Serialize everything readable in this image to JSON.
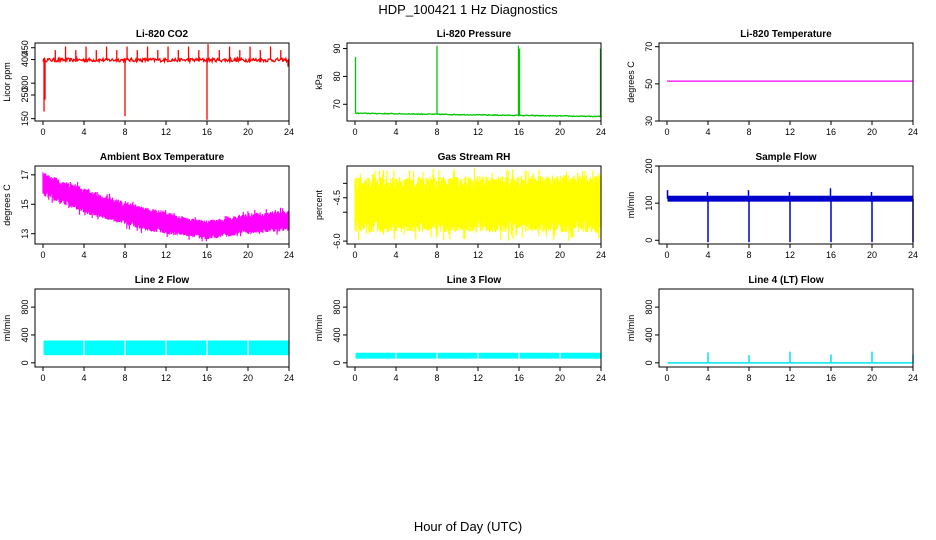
{
  "figure": {
    "title": "HDP_100421  1 Hz Diagnostics",
    "xlabel": "Hour of Day (UTC)"
  },
  "chart_data": [
    {
      "type": "line",
      "title": "Li-820 CO2",
      "ylabel": "Licor ppm",
      "color": "#ff0000",
      "xlim": [
        0,
        24
      ],
      "ylim": [
        140,
        470
      ],
      "xticks": [
        0,
        4,
        8,
        12,
        16,
        20,
        24
      ],
      "yticks": [
        150,
        250,
        300,
        400,
        450
      ],
      "ytick_labels": [
        "150",
        "250",
        "300",
        "400",
        "450"
      ],
      "baseline": {
        "mean": 398,
        "noise": 8
      },
      "spikes": [
        [
          0.1,
          180
        ],
        [
          0.2,
          230
        ],
        [
          1.2,
          440
        ],
        [
          2.2,
          455
        ],
        [
          3.2,
          440
        ],
        [
          4.2,
          455
        ],
        [
          5.2,
          440
        ],
        [
          6.2,
          455
        ],
        [
          7.2,
          440
        ],
        [
          8.0,
          160
        ],
        [
          8.2,
          455
        ],
        [
          9.2,
          440
        ],
        [
          10.2,
          455
        ],
        [
          11.2,
          440
        ],
        [
          12.2,
          455
        ],
        [
          13.2,
          440
        ],
        [
          14.2,
          455
        ],
        [
          15.2,
          440
        ],
        [
          16.0,
          145
        ],
        [
          16.1,
          465
        ],
        [
          17.2,
          440
        ],
        [
          18.2,
          455
        ],
        [
          19.2,
          440
        ],
        [
          20.2,
          455
        ],
        [
          21.2,
          440
        ],
        [
          22.2,
          455
        ],
        [
          23.2,
          440
        ],
        [
          23.9,
          370
        ]
      ]
    },
    {
      "type": "line",
      "title": "Li-820 Pressure",
      "ylabel": "kPa",
      "color": "#00c800",
      "xlim": [
        0,
        24
      ],
      "ylim": [
        64,
        92
      ],
      "xticks": [
        0,
        4,
        8,
        12,
        16,
        20,
        24
      ],
      "yticks": [
        70,
        80,
        90
      ],
      "ytick_labels": [
        "70",
        "80",
        "90"
      ],
      "baseline": {
        "start": 66.8,
        "end": 65.6,
        "noise": 0.15
      },
      "spikes": [
        [
          0.05,
          87
        ],
        [
          8.0,
          91
        ],
        [
          15.95,
          91
        ],
        [
          16.05,
          90
        ],
        [
          23.95,
          90
        ]
      ]
    },
    {
      "type": "line",
      "title": "Li-820 Temperature",
      "ylabel": "degrees C",
      "color": "#ff00ff",
      "xlim": [
        0,
        24
      ],
      "ylim": [
        30,
        72
      ],
      "xticks": [
        0,
        4,
        8,
        12,
        16,
        20,
        24
      ],
      "yticks": [
        30,
        50,
        70
      ],
      "ytick_labels": [
        "30",
        "50",
        "70"
      ],
      "baseline": {
        "mean": 51.5,
        "noise": 0
      },
      "spikes": []
    },
    {
      "type": "area",
      "title": "Ambient Box Temperature",
      "ylabel": "degrees C",
      "color": "#ff00ff",
      "xlim": [
        0,
        24
      ],
      "ylim": [
        12.3,
        17.6
      ],
      "xticks": [
        0,
        4,
        8,
        12,
        16,
        20,
        24
      ],
      "yticks": [
        13,
        15,
        17
      ],
      "ytick_labels": [
        "13",
        "15",
        "17"
      ],
      "upper": [
        [
          0,
          17.2
        ],
        [
          2,
          16.6
        ],
        [
          4,
          16.1
        ],
        [
          6,
          15.6
        ],
        [
          8,
          15.2
        ],
        [
          10,
          14.8
        ],
        [
          12,
          14.5
        ],
        [
          14,
          14.1
        ],
        [
          16,
          13.9
        ],
        [
          18,
          14.1
        ],
        [
          20,
          14.4
        ],
        [
          22,
          14.5
        ],
        [
          24,
          14.6
        ]
      ],
      "lower": [
        [
          0,
          15.6
        ],
        [
          2,
          15.0
        ],
        [
          4,
          14.4
        ],
        [
          6,
          14.0
        ],
        [
          8,
          13.6
        ],
        [
          10,
          13.2
        ],
        [
          12,
          13.0
        ],
        [
          14,
          12.8
        ],
        [
          16,
          12.6
        ],
        [
          18,
          12.8
        ],
        [
          20,
          13.0
        ],
        [
          22,
          13.1
        ],
        [
          24,
          13.2
        ]
      ]
    },
    {
      "type": "area",
      "title": "Gas Stream RH",
      "ylabel": "percent",
      "color": "#ffff00",
      "xlim": [
        0,
        24
      ],
      "ylim": [
        -6.1,
        -3.4
      ],
      "xticks": [
        0,
        4,
        8,
        12,
        16,
        20,
        24
      ],
      "yticks": [
        -6.0,
        -5.0,
        -4.5,
        -4.0
      ],
      "ytick_labels": [
        "-6.0",
        "",
        "-4.5",
        ""
      ],
      "upper": [
        [
          0,
          -3.8
        ],
        [
          24,
          -3.7
        ]
      ],
      "lower": [
        [
          0,
          -5.7
        ],
        [
          24,
          -5.7
        ]
      ]
    },
    {
      "type": "line",
      "title": "Sample Flow",
      "ylabel": "ml/min",
      "color": "#0000cd",
      "xlim": [
        0,
        24
      ],
      "ylim": [
        -10,
        200
      ],
      "xticks": [
        0,
        4,
        8,
        12,
        16,
        20,
        24
      ],
      "yticks": [
        0,
        100,
        200
      ],
      "ytick_labels": [
        "0",
        "100",
        "200"
      ],
      "band": [
        104,
        120
      ],
      "spikes": [
        [
          0.05,
          135
        ],
        [
          3.95,
          130
        ],
        [
          4.0,
          -5
        ],
        [
          7.95,
          135
        ],
        [
          8.0,
          -5
        ],
        [
          11.95,
          130
        ],
        [
          12.0,
          -5
        ],
        [
          15.95,
          140
        ],
        [
          16.0,
          -5
        ],
        [
          19.95,
          130
        ],
        [
          20.0,
          -5
        ],
        [
          23.95,
          120
        ],
        [
          24.0,
          -5
        ]
      ]
    },
    {
      "type": "area",
      "title": "Line 2 Flow",
      "ylabel": "ml/min",
      "color": "#00ffff",
      "xlim": [
        0,
        24
      ],
      "ylim": [
        -60,
        1060
      ],
      "xticks": [
        0,
        4,
        8,
        12,
        16,
        20,
        24
      ],
      "yticks": [
        0,
        400,
        800
      ],
      "ytick_labels": [
        "0",
        "400",
        "800"
      ],
      "band": [
        110,
        320
      ],
      "gaps": [
        4,
        8,
        12,
        16,
        20
      ]
    },
    {
      "type": "area",
      "title": "Line 3 Flow",
      "ylabel": "ml/min",
      "color": "#00ffff",
      "xlim": [
        0,
        24
      ],
      "ylim": [
        -60,
        1060
      ],
      "xticks": [
        0,
        4,
        8,
        12,
        16,
        20,
        24
      ],
      "yticks": [
        0,
        400,
        800
      ],
      "ytick_labels": [
        "0",
        "400",
        "800"
      ],
      "band": [
        60,
        145
      ],
      "gaps": [
        4,
        8,
        12,
        16,
        20
      ]
    },
    {
      "type": "line",
      "title": "Line 4 (LT) Flow",
      "ylabel": "ml/min",
      "color": "#00e5ee",
      "xlim": [
        0,
        24
      ],
      "ylim": [
        -60,
        1060
      ],
      "xticks": [
        0,
        4,
        8,
        12,
        16,
        20,
        24
      ],
      "yticks": [
        0,
        400,
        800
      ],
      "ytick_labels": [
        "0",
        "400",
        "800"
      ],
      "band": [
        -10,
        10
      ],
      "spikes": [
        [
          4.0,
          150
        ],
        [
          8.0,
          110
        ],
        [
          12.0,
          160
        ],
        [
          16.0,
          120
        ],
        [
          20.0,
          160
        ],
        [
          24.0,
          120
        ]
      ]
    }
  ]
}
